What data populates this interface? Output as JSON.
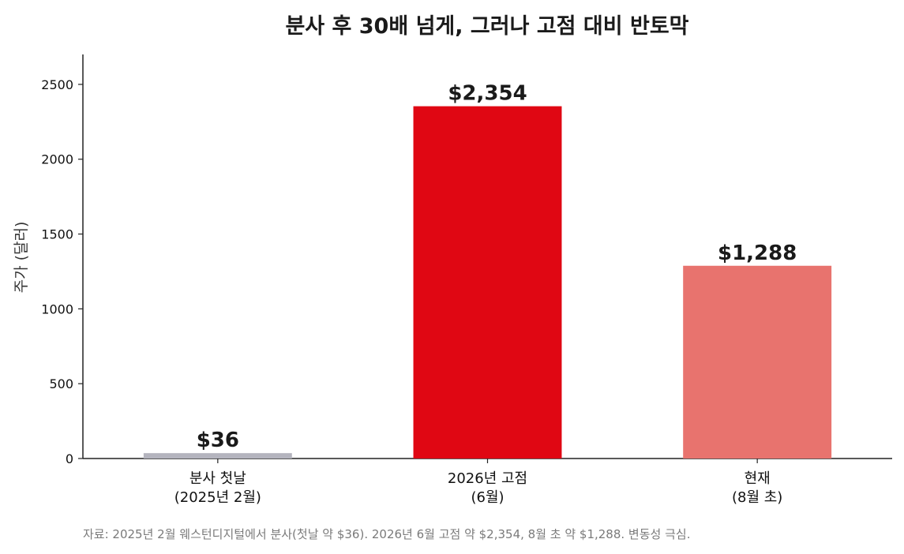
{
  "chart_data": {
    "type": "bar",
    "title": "분사 후 30배 넘게, 그러나 고점 대비 반토막",
    "xlabel": "",
    "ylabel": "주가 (달러)",
    "ylim": [
      0,
      2700
    ],
    "yticks": [
      0,
      500,
      1000,
      1500,
      2000,
      2500
    ],
    "categories": [
      [
        "분사 첫날",
        "(2025년 2월)"
      ],
      [
        "2026년 고점",
        "(6월)"
      ],
      [
        "현재",
        "(8월 초)"
      ]
    ],
    "values": [
      36,
      2354,
      1288
    ],
    "data_labels": [
      "$36",
      "$2,354",
      "$1,288"
    ],
    "colors": [
      "#b4b4be",
      "#e00713",
      "#e8736e"
    ],
    "grid": false,
    "legend": "none"
  },
  "source_note": "자료: 2025년 2월 웨스턴디지털에서 분사(첫날 약 $36). 2026년 6월 고점 약 $2,354, 8월 초 약 $1,288. 변동성 극심."
}
